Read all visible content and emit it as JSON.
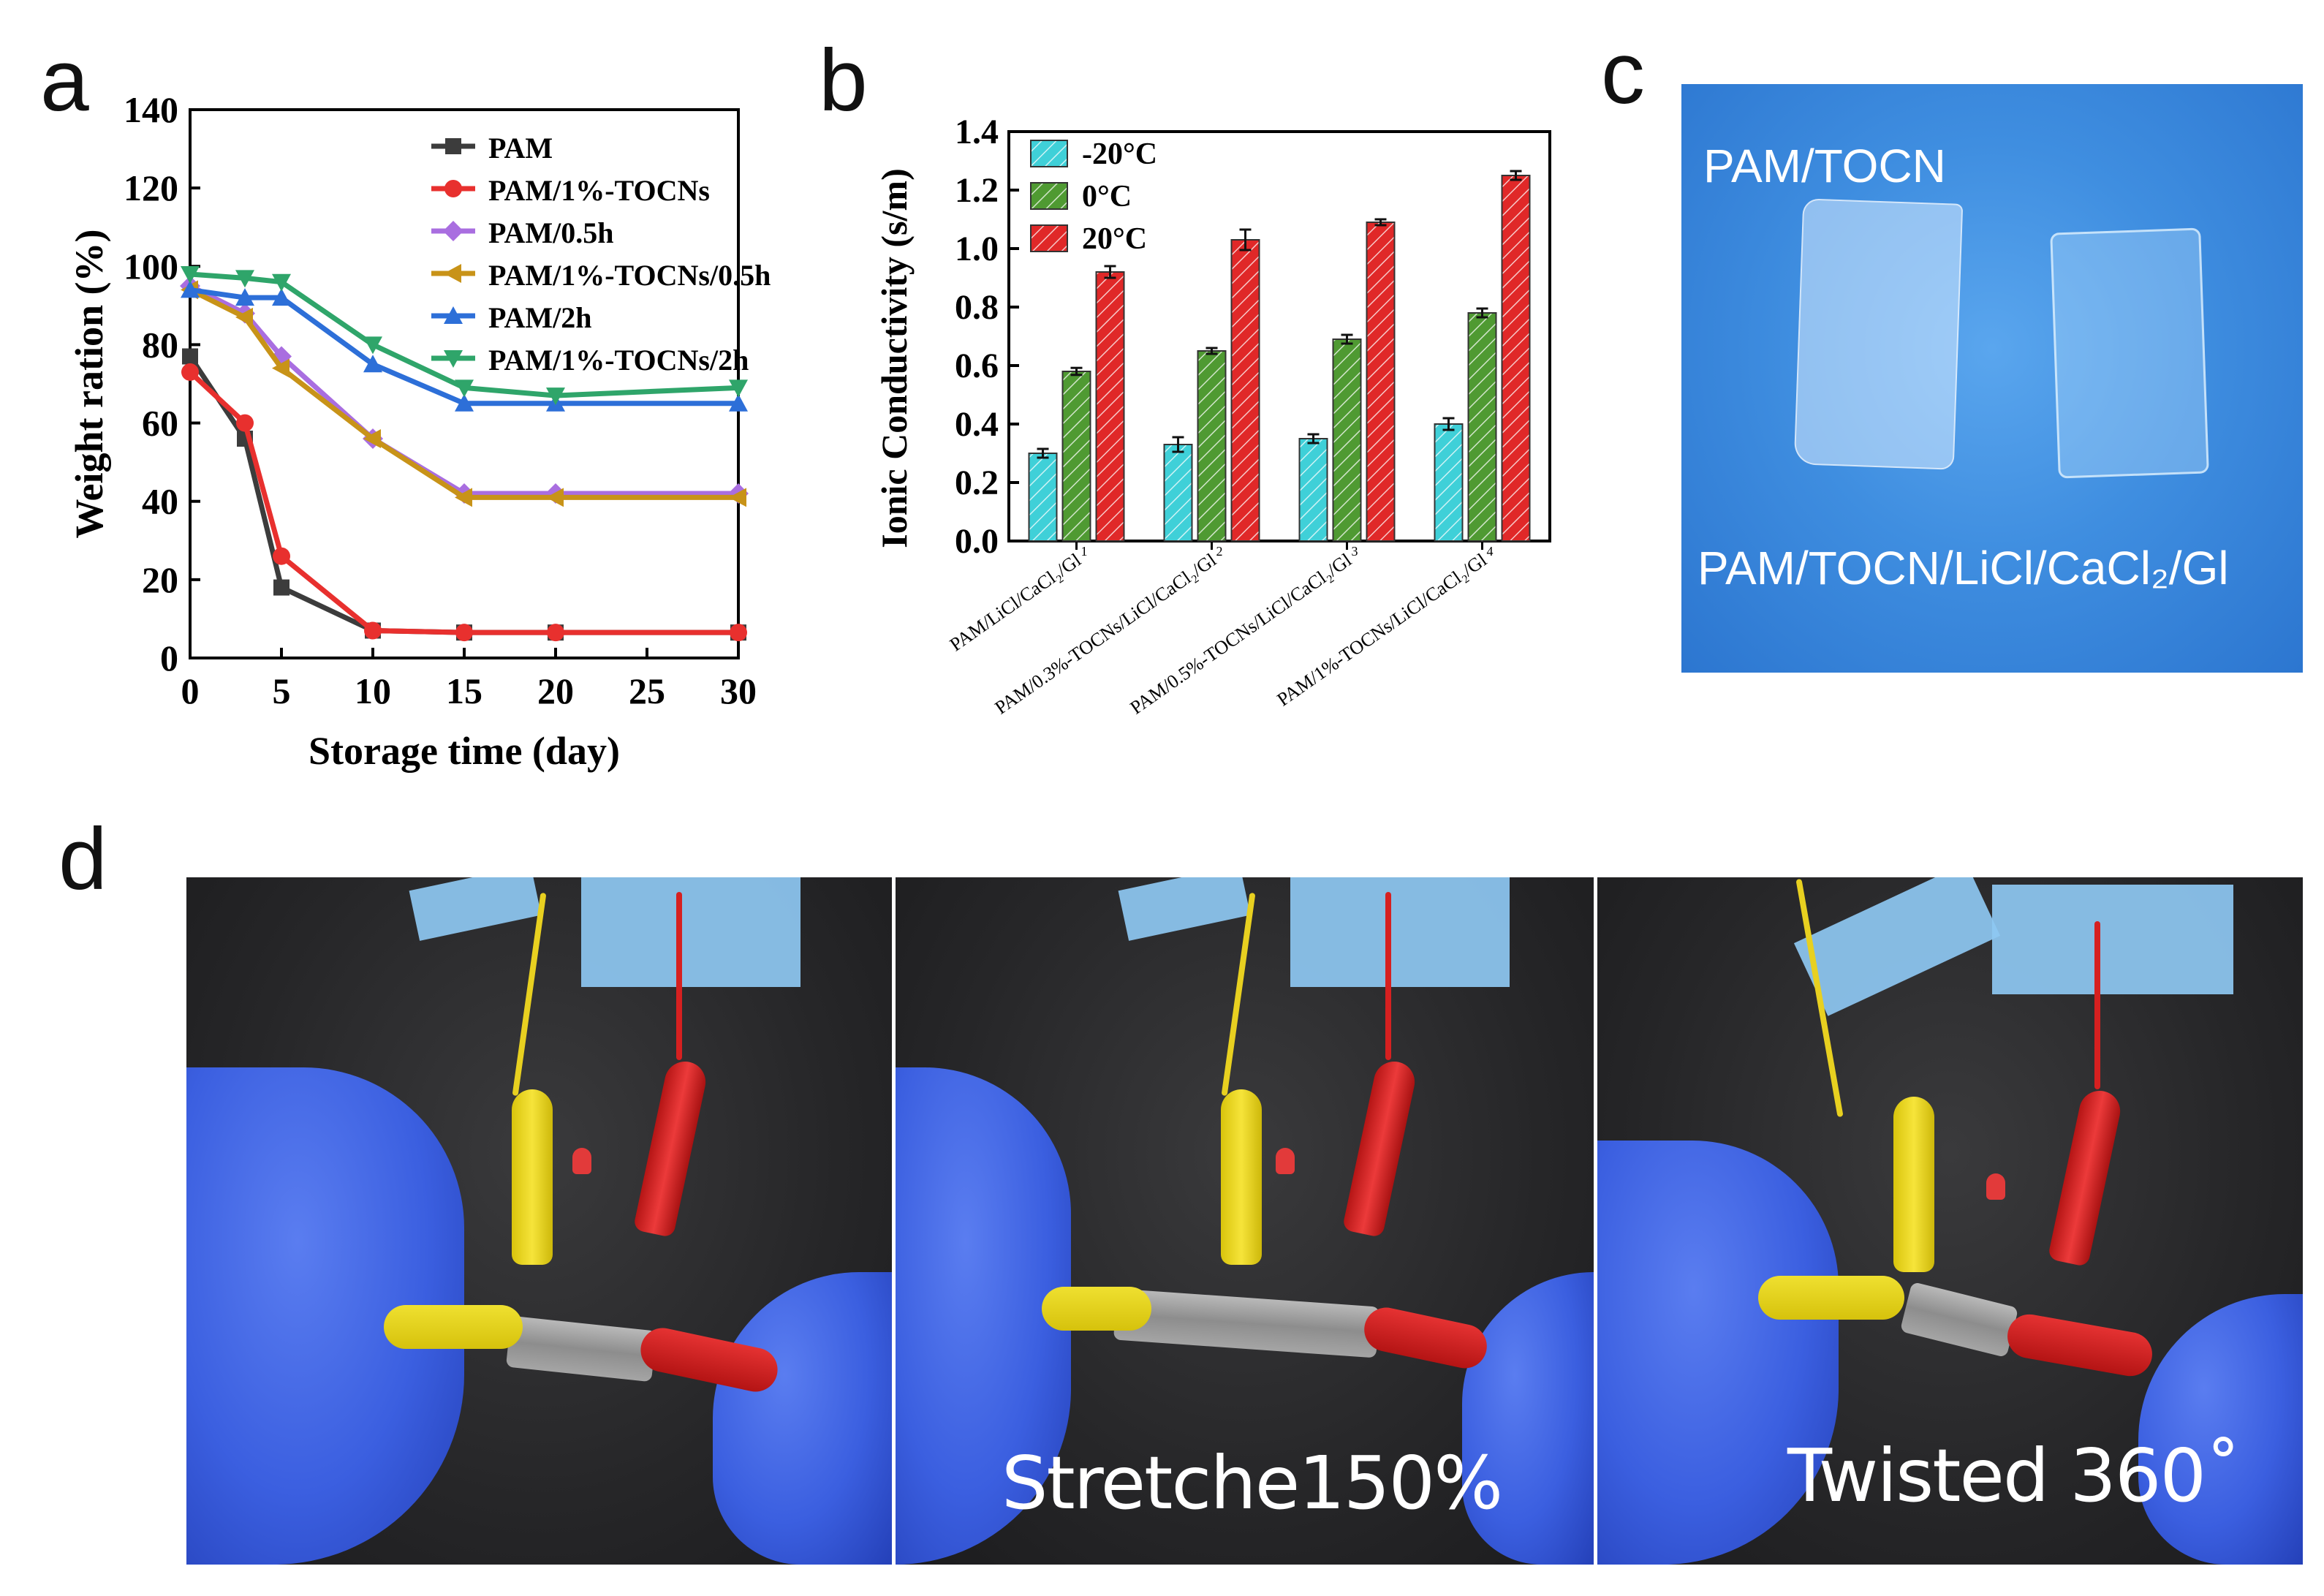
{
  "panel_labels": {
    "a": "a",
    "b": "b",
    "c": "c",
    "d": "d"
  },
  "photo_c": {
    "label_top": "PAM/TOCN",
    "label_bottom": "PAM/TOCN/LiCl/CaCl₂/Gl"
  },
  "photo_d": {
    "caption_stretch": "Stretche150%",
    "caption_twist": "Twisted 360˚"
  },
  "chart_data": [
    {
      "type": "line",
      "xlabel": "Storage time (day)",
      "ylabel": "Weight ration (%)",
      "xlim": [
        0,
        30
      ],
      "ylim": [
        0,
        140
      ],
      "xticks": [
        "0",
        "5",
        "10",
        "15",
        "20",
        "25",
        "30"
      ],
      "yticks": [
        "0",
        "20",
        "40",
        "60",
        "80",
        "100",
        "120",
        "140"
      ],
      "legend_position": "top-right",
      "series": [
        {
          "name": "PAM",
          "color": "#3c3c3c",
          "marker": "square",
          "x": [
            0,
            3,
            5,
            10,
            15,
            20,
            30
          ],
          "y": [
            77,
            56,
            18,
            7,
            6.5,
            6.5,
            6.5
          ]
        },
        {
          "name": "PAM/1%-TOCNs",
          "color": "#e8302e",
          "marker": "circle",
          "x": [
            0,
            3,
            5,
            10,
            15,
            20,
            30
          ],
          "y": [
            73,
            60,
            26,
            7,
            6.5,
            6.5,
            6.5
          ]
        },
        {
          "name": "PAM/0.5h",
          "color": "#a96ee0",
          "marker": "diamond",
          "x": [
            0,
            3,
            5,
            10,
            15,
            20,
            30
          ],
          "y": [
            95,
            88,
            77,
            56,
            42,
            42,
            42
          ]
        },
        {
          "name": "PAM/1%-TOCNs/0.5h",
          "color": "#c89318",
          "marker": "triangle-left",
          "x": [
            0,
            3,
            5,
            10,
            15,
            20,
            30
          ],
          "y": [
            94,
            87,
            74,
            56,
            41,
            41,
            41
          ]
        },
        {
          "name": "PAM/2h",
          "color": "#2d6fd8",
          "marker": "triangle-up",
          "x": [
            0,
            3,
            5,
            10,
            15,
            20,
            30
          ],
          "y": [
            94,
            92,
            92,
            75,
            65,
            65,
            65
          ]
        },
        {
          "name": "PAM/1%-TOCNs/2h",
          "color": "#2fa56a",
          "marker": "triangle-down",
          "x": [
            0,
            3,
            5,
            10,
            15,
            20,
            30
          ],
          "y": [
            98,
            97,
            96,
            80,
            69,
            67,
            69
          ]
        }
      ]
    },
    {
      "type": "bar",
      "ylabel": "Ionic Conductivity (s/m)",
      "ylim": [
        0,
        1.4
      ],
      "yticks": [
        "0.0",
        "0.2",
        "0.4",
        "0.6",
        "0.8",
        "1.0",
        "1.2",
        "1.4"
      ],
      "category_numbers": [
        "1",
        "2",
        "3",
        "4"
      ],
      "categories": [
        "PAM/LiCl/CaCl₂/Gl",
        "PAM/0.3%-TOCNs/LiCl/CaCl₂/Gl",
        "PAM/0.5%-TOCNs/LiCl/CaCl₂/Gl",
        "PAM/1%-TOCNs/LiCl/CaCl₂/Gl"
      ],
      "legend_position": "top-left",
      "series": [
        {
          "name": "-20°C",
          "color": "#3fd0d8",
          "values": [
            0.3,
            0.33,
            0.35,
            0.4
          ],
          "errors": [
            0.015,
            0.025,
            0.015,
            0.02
          ]
        },
        {
          "name": "0°C",
          "color": "#4f9a32",
          "values": [
            0.58,
            0.65,
            0.69,
            0.78
          ],
          "errors": [
            0.012,
            0.01,
            0.015,
            0.015
          ]
        },
        {
          "name": "20°C",
          "color": "#e02828",
          "values": [
            0.92,
            1.03,
            1.09,
            1.25
          ],
          "errors": [
            0.02,
            0.035,
            0.01,
            0.015
          ]
        }
      ]
    }
  ]
}
